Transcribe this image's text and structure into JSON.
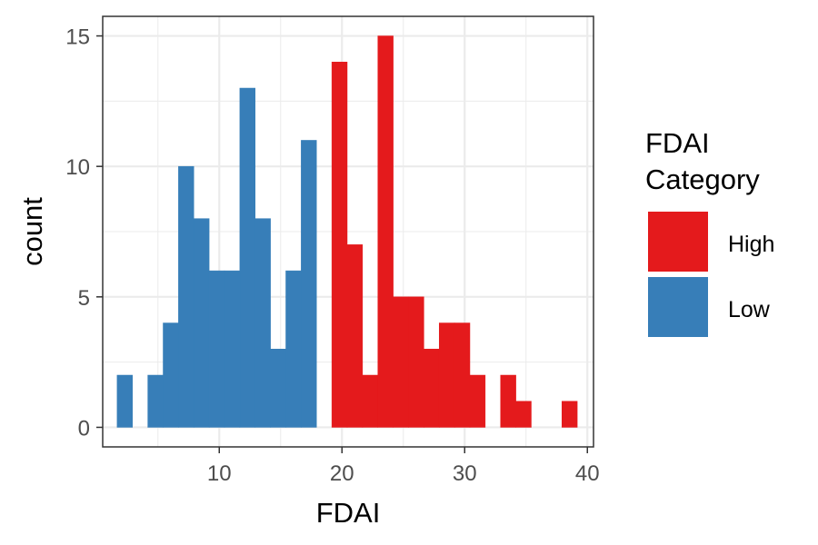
{
  "chart_data": {
    "type": "bar",
    "subtype": "histogram",
    "title": "",
    "xlabel": "FDAI",
    "ylabel": "count",
    "xlim": [
      0.5,
      40.5
    ],
    "ylim": [
      -0.75,
      15.75
    ],
    "xticks": [
      10,
      20,
      30,
      40
    ],
    "yticks": [
      0,
      5,
      10,
      15
    ],
    "bin_width": 1.25,
    "grid": true,
    "legend": {
      "title_lines": [
        "FDAI",
        "Category"
      ],
      "placement": "right"
    },
    "series": [
      {
        "name": "High",
        "color": "#E41A1C",
        "bins": [
          {
            "x": 19.8,
            "count": 14
          },
          {
            "x": 21.05,
            "count": 7
          },
          {
            "x": 22.3,
            "count": 2
          },
          {
            "x": 23.55,
            "count": 15
          },
          {
            "x": 24.8,
            "count": 5
          },
          {
            "x": 26.05,
            "count": 5
          },
          {
            "x": 27.3,
            "count": 3
          },
          {
            "x": 28.55,
            "count": 4
          },
          {
            "x": 29.8,
            "count": 4
          },
          {
            "x": 31.05,
            "count": 2
          },
          {
            "x": 32.3,
            "count": 0
          },
          {
            "x": 33.55,
            "count": 2
          },
          {
            "x": 34.8,
            "count": 1
          },
          {
            "x": 36.05,
            "count": 0
          },
          {
            "x": 37.3,
            "count": 0
          },
          {
            "x": 38.55,
            "count": 1
          }
        ]
      },
      {
        "name": "Low",
        "color": "#377EB8",
        "bins": [
          {
            "x": 2.3,
            "count": 2
          },
          {
            "x": 3.55,
            "count": 0
          },
          {
            "x": 4.8,
            "count": 2
          },
          {
            "x": 6.05,
            "count": 4
          },
          {
            "x": 7.3,
            "count": 10
          },
          {
            "x": 8.55,
            "count": 8
          },
          {
            "x": 9.8,
            "count": 6
          },
          {
            "x": 11.05,
            "count": 6
          },
          {
            "x": 12.3,
            "count": 13
          },
          {
            "x": 13.55,
            "count": 8
          },
          {
            "x": 14.8,
            "count": 3
          },
          {
            "x": 16.05,
            "count": 6
          },
          {
            "x": 17.3,
            "count": 11
          }
        ]
      }
    ]
  }
}
